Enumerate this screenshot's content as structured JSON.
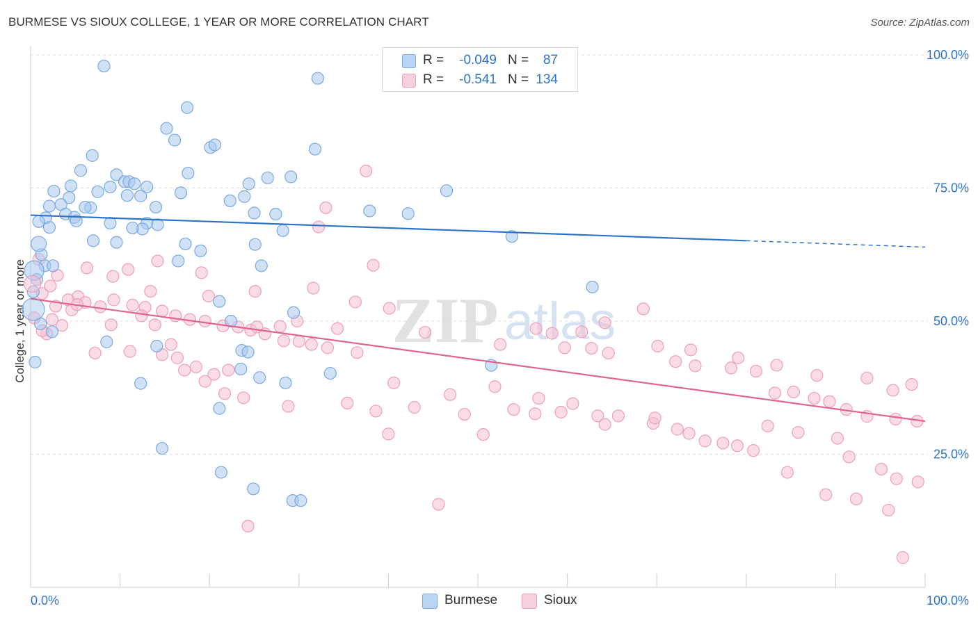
{
  "header": {
    "title": "BURMESE VS SIOUX COLLEGE, 1 YEAR OR MORE CORRELATION CHART",
    "source": "Source: ZipAtlas.com"
  },
  "legend": {
    "rows": [
      {
        "r_label": "R =",
        "r_value": "-0.049",
        "n_label": "N =",
        "n_value": "87"
      },
      {
        "r_label": "R =",
        "r_value": "-0.541",
        "n_label": "N =",
        "n_value": "134"
      }
    ],
    "bottom": [
      "Burmese",
      "Sioux"
    ]
  },
  "colors": {
    "burmese_fill": "#a9c9ef",
    "burmese_stroke": "#7aaae0",
    "burmese_line": "#2f73c9",
    "sioux_fill": "#f6bfd1",
    "sioux_stroke": "#ee9fb9",
    "sioux_line": "#e0648f",
    "value_text": "#2f73c9",
    "grid": "#dddddd"
  },
  "chart_data": {
    "type": "scatter",
    "title": "BURMESE VS SIOUX COLLEGE, 1 YEAR OR MORE CORRELATION CHART",
    "xlabel": "",
    "ylabel": "College, 1 year or more",
    "x_tick_labels": [
      "0.0%",
      "100.0%"
    ],
    "y_tick_labels": [
      "25.0%",
      "50.0%",
      "75.0%",
      "100.0%"
    ],
    "y_ticks": [
      25,
      50,
      75,
      100
    ],
    "xlim": [
      0,
      100
    ],
    "ylim": [
      0,
      100
    ],
    "grid": true,
    "legend_position": "top-center",
    "watermark": "ZIPatlas",
    "series": [
      {
        "name": "Burmese",
        "r": -0.049,
        "n": 87,
        "trend": {
          "x0": 0,
          "y0": 69.9,
          "x1": 100,
          "y1": 63.9,
          "solid_until": 80
        },
        "points": [
          [
            8.2,
            97.9
          ],
          [
            32.1,
            95.6
          ],
          [
            17.5,
            90.1
          ],
          [
            15.2,
            86.2
          ],
          [
            16.1,
            84
          ],
          [
            20.1,
            82.6
          ],
          [
            20.6,
            83.1
          ],
          [
            31.8,
            82.3
          ],
          [
            6.9,
            81.1
          ],
          [
            5.6,
            78.3
          ],
          [
            9.6,
            77.5
          ],
          [
            17.6,
            77.8
          ],
          [
            29.1,
            77.1
          ],
          [
            26.5,
            76.9
          ],
          [
            24.4,
            75.8
          ],
          [
            10.5,
            76.2
          ],
          [
            11.0,
            76.2
          ],
          [
            11.6,
            75.8
          ],
          [
            8.9,
            75.2
          ],
          [
            4.5,
            75.4
          ],
          [
            13.0,
            75.2
          ],
          [
            2.6,
            74.4
          ],
          [
            7.5,
            74.3
          ],
          [
            16.8,
            74.1
          ],
          [
            10.8,
            73.6
          ],
          [
            12.3,
            73.5
          ],
          [
            4.3,
            73.2
          ],
          [
            23.9,
            73.4
          ],
          [
            22.3,
            72.6
          ],
          [
            2.1,
            71.6
          ],
          [
            3.4,
            71.9
          ],
          [
            6.7,
            71.3
          ],
          [
            14.0,
            71.4
          ],
          [
            6.1,
            71.4
          ],
          [
            25.0,
            70.3
          ],
          [
            37.9,
            70.7
          ],
          [
            42.2,
            70.2
          ],
          [
            46.5,
            74.5
          ],
          [
            27.4,
            70.1
          ],
          [
            1.7,
            69.4
          ],
          [
            3.9,
            70.1
          ],
          [
            4.9,
            69.5
          ],
          [
            8.9,
            68.4
          ],
          [
            5.1,
            68.8
          ],
          [
            13.0,
            68.4
          ],
          [
            12.5,
            67.3
          ],
          [
            14.2,
            68.1
          ],
          [
            28.2,
            67.0
          ],
          [
            0.9,
            68.7
          ],
          [
            2.1,
            67.6
          ],
          [
            11.4,
            67.5
          ],
          [
            7.0,
            65.1
          ],
          [
            9.6,
            64.8
          ],
          [
            19.0,
            63.2
          ],
          [
            25.1,
            64.4
          ],
          [
            53.8,
            65.9
          ],
          [
            16.5,
            61.3
          ],
          [
            1.2,
            62.5
          ],
          [
            1.6,
            60.4
          ],
          [
            2.5,
            60.4
          ],
          [
            17.3,
            64.5
          ],
          [
            25.8,
            60.4
          ],
          [
            0.7,
            57.8
          ],
          [
            0.3,
            55.5
          ],
          [
            21.1,
            53.7
          ],
          [
            29.4,
            51.6
          ],
          [
            22.4,
            50.0
          ],
          [
            62.8,
            56.4
          ],
          [
            51.5,
            41.7
          ],
          [
            23.6,
            44.5
          ],
          [
            24.3,
            44.2
          ],
          [
            23.5,
            41.0
          ],
          [
            33.5,
            40.2
          ],
          [
            25.6,
            39.4
          ],
          [
            14.1,
            45.3
          ],
          [
            8.5,
            46.1
          ],
          [
            12.3,
            38.3
          ],
          [
            28.5,
            38.4
          ],
          [
            21.1,
            33.6
          ],
          [
            14.7,
            26.1
          ],
          [
            2.4,
            48.0
          ],
          [
            24.9,
            18.5
          ],
          [
            1.1,
            49.5
          ],
          [
            21.3,
            21.6
          ],
          [
            29.3,
            16.3
          ],
          [
            30.2,
            16.3
          ],
          [
            0.5,
            42.3
          ]
        ]
      },
      {
        "name": "Sioux",
        "r": -0.541,
        "n": 134,
        "trend": {
          "x0": 0,
          "y0": 54.2,
          "x1": 100,
          "y1": 31.2
        },
        "points": [
          [
            37.5,
            78.2
          ],
          [
            33.0,
            71.3
          ],
          [
            38.3,
            60.5
          ],
          [
            32.2,
            67.7
          ],
          [
            0.9,
            61.6
          ],
          [
            6.3,
            60.0
          ],
          [
            10.9,
            59.7
          ],
          [
            3.0,
            58.6
          ],
          [
            5.3,
            54.6
          ],
          [
            9.2,
            58.4
          ],
          [
            13.4,
            55.6
          ],
          [
            19.9,
            54.7
          ],
          [
            25.1,
            55.6
          ],
          [
            31.6,
            56.2
          ],
          [
            36.3,
            53.6
          ],
          [
            40.1,
            52.4
          ],
          [
            44.1,
            47.9
          ],
          [
            52.5,
            45.6
          ],
          [
            56.5,
            48.6
          ],
          [
            58.3,
            47.7
          ],
          [
            59.7,
            45.0
          ],
          [
            62.7,
            44.9
          ],
          [
            64.6,
            44.0
          ],
          [
            70.1,
            45.3
          ],
          [
            72.1,
            42.4
          ],
          [
            74.3,
            41.6
          ],
          [
            78.3,
            41.2
          ],
          [
            81.1,
            40.6
          ],
          [
            83.2,
            36.5
          ],
          [
            85.3,
            36.7
          ],
          [
            87.6,
            35.5
          ],
          [
            89.3,
            34.9
          ],
          [
            91.2,
            33.4
          ],
          [
            93.5,
            32.1
          ],
          [
            96.7,
            31.6
          ],
          [
            99.1,
            31.2
          ],
          [
            1.3,
            55.2
          ],
          [
            2.2,
            56.6
          ],
          [
            4.2,
            54.0
          ],
          [
            6.1,
            53.5
          ],
          [
            7.8,
            52.7
          ],
          [
            9.3,
            54.0
          ],
          [
            11.4,
            53.0
          ],
          [
            12.8,
            52.6
          ],
          [
            14.7,
            51.9
          ],
          [
            16.2,
            51.0
          ],
          [
            17.8,
            50.3
          ],
          [
            19.5,
            50.0
          ],
          [
            21.5,
            49.1
          ],
          [
            23.2,
            48.9
          ],
          [
            24.6,
            48.3
          ],
          [
            26.2,
            47.6
          ],
          [
            28.3,
            46.3
          ],
          [
            30.0,
            46.2
          ],
          [
            31.4,
            45.6
          ],
          [
            33.2,
            45.0
          ],
          [
            36.5,
            44.1
          ],
          [
            4.6,
            52.1
          ],
          [
            9.0,
            49.3
          ],
          [
            11.1,
            44.3
          ],
          [
            14.7,
            43.7
          ],
          [
            16.4,
            43.1
          ],
          [
            18.5,
            41.4
          ],
          [
            20.5,
            40.0
          ],
          [
            22.1,
            40.8
          ],
          [
            25.3,
            48.9
          ],
          [
            27.9,
            49.0
          ],
          [
            12.4,
            51.0
          ],
          [
            13.9,
            49.3
          ],
          [
            15.7,
            45.6
          ],
          [
            7.2,
            44.0
          ],
          [
            3.5,
            49.2
          ],
          [
            2.4,
            50.3
          ],
          [
            1.8,
            47.6
          ],
          [
            29.8,
            50.0
          ],
          [
            34.3,
            48.6
          ],
          [
            17.2,
            40.8
          ],
          [
            19.5,
            38.7
          ],
          [
            21.7,
            36.4
          ],
          [
            23.8,
            35.6
          ],
          [
            28.8,
            34.0
          ],
          [
            35.4,
            34.6
          ],
          [
            38.6,
            33.1
          ],
          [
            40.0,
            28.8
          ],
          [
            42.9,
            33.8
          ],
          [
            48.5,
            32.5
          ],
          [
            50.6,
            28.7
          ],
          [
            54.0,
            33.4
          ],
          [
            56.4,
            32.6
          ],
          [
            59.3,
            32.9
          ],
          [
            63.4,
            32.2
          ],
          [
            65.7,
            32.2
          ],
          [
            69.6,
            30.8
          ],
          [
            72.3,
            29.7
          ],
          [
            75.4,
            27.5
          ],
          [
            77.4,
            27.1
          ],
          [
            79.0,
            26.6
          ],
          [
            82.4,
            30.3
          ],
          [
            85.8,
            29.1
          ],
          [
            90.2,
            28.0
          ],
          [
            91.5,
            24.5
          ],
          [
            95.1,
            22.2
          ],
          [
            96.8,
            20.4
          ],
          [
            99.2,
            19.8
          ],
          [
            40.6,
            38.4
          ],
          [
            46.9,
            36.2
          ],
          [
            51.9,
            37.7
          ],
          [
            56.8,
            35.5
          ],
          [
            60.6,
            34.5
          ],
          [
            64.2,
            30.6
          ],
          [
            69.8,
            31.8
          ],
          [
            73.6,
            28.9
          ],
          [
            80.8,
            25.7
          ],
          [
            84.6,
            21.6
          ],
          [
            88.9,
            17.4
          ],
          [
            92.3,
            16.6
          ],
          [
            95.9,
            14.5
          ],
          [
            61.6,
            48.0
          ],
          [
            73.8,
            44.6
          ],
          [
            79.1,
            43.1
          ],
          [
            83.4,
            41.7
          ],
          [
            87.9,
            39.8
          ],
          [
            93.5,
            39.3
          ],
          [
            96.4,
            37.0
          ],
          [
            98.5,
            38.1
          ],
          [
            45.6,
            15.6
          ],
          [
            24.3,
            11.5
          ],
          [
            64.2,
            49.7
          ],
          [
            68.5,
            52.3
          ],
          [
            1.3,
            48.2
          ],
          [
            2.8,
            52.8
          ],
          [
            0.4,
            50.6
          ],
          [
            5.2,
            53.1
          ],
          [
            97.5,
            5.6
          ],
          [
            14.2,
            61.3
          ],
          [
            19.1,
            59.1
          ]
        ]
      }
    ]
  }
}
